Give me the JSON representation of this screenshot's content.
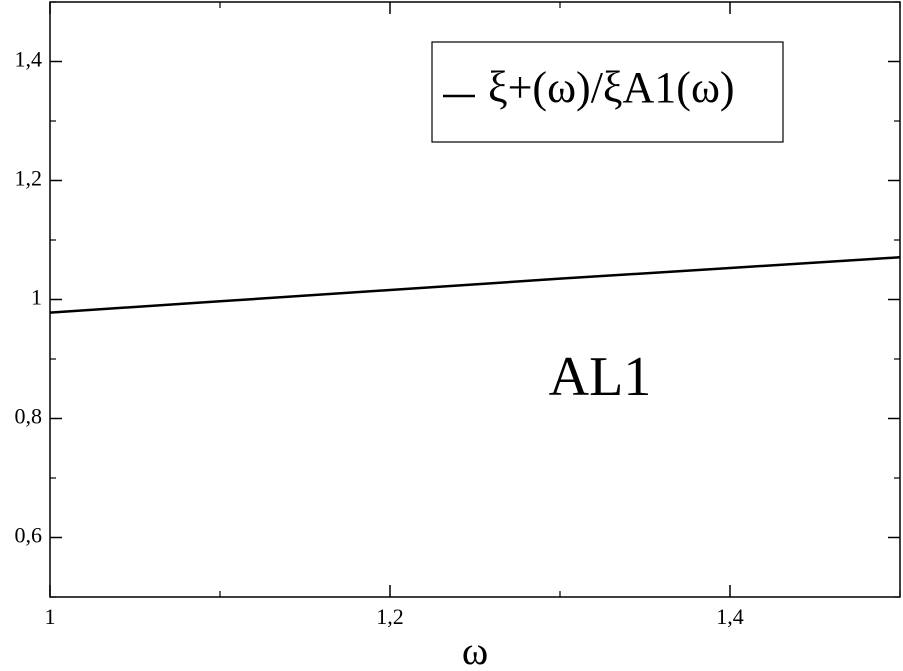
{
  "chart_data": {
    "type": "line",
    "x_label": "ω",
    "annotation": "AL1",
    "x": [
      1,
      1.1,
      1.2,
      1.3,
      1.4,
      1.5
    ],
    "series": [
      {
        "name": "ξ+(ω)/ξA1(ω)",
        "color": "#000000",
        "values": [
          0.978,
          0.997,
          1.016,
          1.035,
          1.053,
          1.071
        ]
      }
    ],
    "xlim": [
      1,
      1.5
    ],
    "ylim": [
      0.5,
      1.5
    ],
    "xticks": [
      1,
      {
        "value": 1.2,
        "label": "1,2"
      },
      {
        "value": 1.4,
        "label": "1,4"
      }
    ],
    "yticks": [
      {
        "value": 0.6,
        "label": "0,6"
      },
      {
        "value": 0.8,
        "label": "0,8"
      },
      1,
      {
        "value": 1.2,
        "label": "1,2"
      },
      {
        "value": 1.4,
        "label": "1,4"
      }
    ],
    "xminorticks": [
      1.1,
      1.3,
      1.5
    ],
    "yminorticks": [
      0.5,
      0.7,
      0.9,
      1.1,
      1.3,
      1.5
    ],
    "legend": "top-right"
  }
}
